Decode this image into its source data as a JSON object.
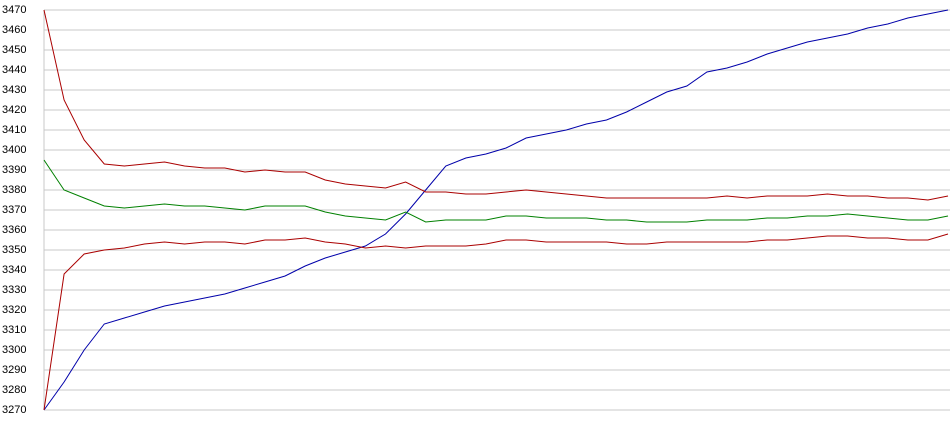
{
  "chart_data": {
    "type": "line",
    "ylim": [
      3270,
      3470
    ],
    "yticks": [
      3270,
      3280,
      3290,
      3300,
      3310,
      3320,
      3330,
      3340,
      3350,
      3360,
      3370,
      3380,
      3390,
      3400,
      3410,
      3420,
      3430,
      3440,
      3450,
      3460,
      3470
    ],
    "grid": true,
    "series": [
      {
        "color": "#0000aa",
        "values": [
          3270,
          3284,
          3300,
          3313,
          3316,
          3319,
          3322,
          3324,
          3326,
          3328,
          3331,
          3334,
          3337,
          3342,
          3346,
          3349,
          3352,
          3358,
          3368,
          3380,
          3392,
          3396,
          3398,
          3401,
          3406,
          3408,
          3410,
          3413,
          3415,
          3419,
          3424,
          3429,
          3432,
          3439,
          3441,
          3444,
          3448,
          3451,
          3454,
          3456,
          3458,
          3461,
          3463,
          3466,
          3468,
          3470
        ]
      },
      {
        "color": "#aa0000",
        "values": [
          3470,
          3425,
          3405,
          3393,
          3392,
          3393,
          3394,
          3392,
          3391,
          3391,
          3389,
          3390,
          3389,
          3389,
          3385,
          3383,
          3382,
          3381,
          3384,
          3379,
          3379,
          3378,
          3378,
          3379,
          3380,
          3379,
          3378,
          3377,
          3376,
          3376,
          3376,
          3376,
          3376,
          3376,
          3377,
          3376,
          3377,
          3377,
          3377,
          3378,
          3377,
          3377,
          3376,
          3376,
          3375,
          3377
        ]
      },
      {
        "color": "#008000",
        "values": [
          3395,
          3380,
          3376,
          3372,
          3371,
          3372,
          3373,
          3372,
          3372,
          3371,
          3370,
          3372,
          3372,
          3372,
          3369,
          3367,
          3366,
          3365,
          3369,
          3364,
          3365,
          3365,
          3365,
          3367,
          3367,
          3366,
          3366,
          3366,
          3365,
          3365,
          3364,
          3364,
          3364,
          3365,
          3365,
          3365,
          3366,
          3366,
          3367,
          3367,
          3368,
          3367,
          3366,
          3365,
          3365,
          3367
        ]
      },
      {
        "color": "#aa0000",
        "values": [
          3270,
          3338,
          3348,
          3350,
          3351,
          3353,
          3354,
          3353,
          3354,
          3354,
          3353,
          3355,
          3355,
          3356,
          3354,
          3353,
          3351,
          3352,
          3351,
          3352,
          3352,
          3352,
          3353,
          3355,
          3355,
          3354,
          3354,
          3354,
          3354,
          3353,
          3353,
          3354,
          3354,
          3354,
          3354,
          3354,
          3355,
          3355,
          3356,
          3357,
          3357,
          3356,
          3356,
          3355,
          3355,
          3358
        ]
      }
    ]
  }
}
